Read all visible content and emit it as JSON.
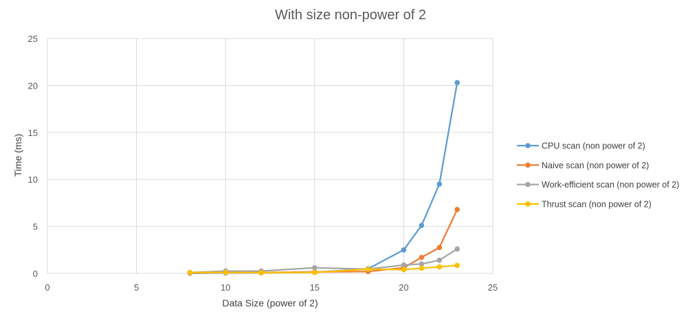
{
  "chart_data": {
    "type": "line",
    "title": "With size non-power of 2",
    "xlabel": "Data Size (power of 2)",
    "ylabel": "Time (ms)",
    "xlim": [
      0,
      25
    ],
    "ylim": [
      0,
      25
    ],
    "xticks": [
      0,
      5,
      10,
      15,
      20,
      25
    ],
    "yticks": [
      0,
      5,
      10,
      15,
      20,
      25
    ],
    "grid": true,
    "legend_position": "right",
    "series": [
      {
        "name": "CPU scan (non power of 2)",
        "color": "#5b9bd5",
        "x": [
          8,
          10,
          12,
          15,
          18,
          20,
          21,
          22,
          23
        ],
        "y": [
          0.02,
          0.05,
          0.06,
          0.12,
          0.5,
          2.5,
          5.1,
          9.5,
          20.3
        ]
      },
      {
        "name": "Naive scan (non power of 2)",
        "color": "#ed7d31",
        "x": [
          8,
          10,
          12,
          15,
          18,
          20,
          21,
          22,
          23
        ],
        "y": [
          0.05,
          0.1,
          0.1,
          0.15,
          0.2,
          0.6,
          1.7,
          2.75,
          6.8
        ]
      },
      {
        "name": "Work-efficient scan (non power of 2)",
        "color": "#a5a5a5",
        "x": [
          8,
          10,
          12,
          15,
          18,
          20,
          21,
          22,
          23
        ],
        "y": [
          0.1,
          0.25,
          0.25,
          0.6,
          0.45,
          0.9,
          1.0,
          1.4,
          2.6
        ]
      },
      {
        "name": "Thrust scan (non power of 2)",
        "color": "#ffc000",
        "x": [
          8,
          10,
          12,
          15,
          18,
          20,
          21,
          22,
          23
        ],
        "y": [
          0.1,
          0.1,
          0.08,
          0.1,
          0.45,
          0.4,
          0.55,
          0.7,
          0.85
        ]
      }
    ]
  }
}
